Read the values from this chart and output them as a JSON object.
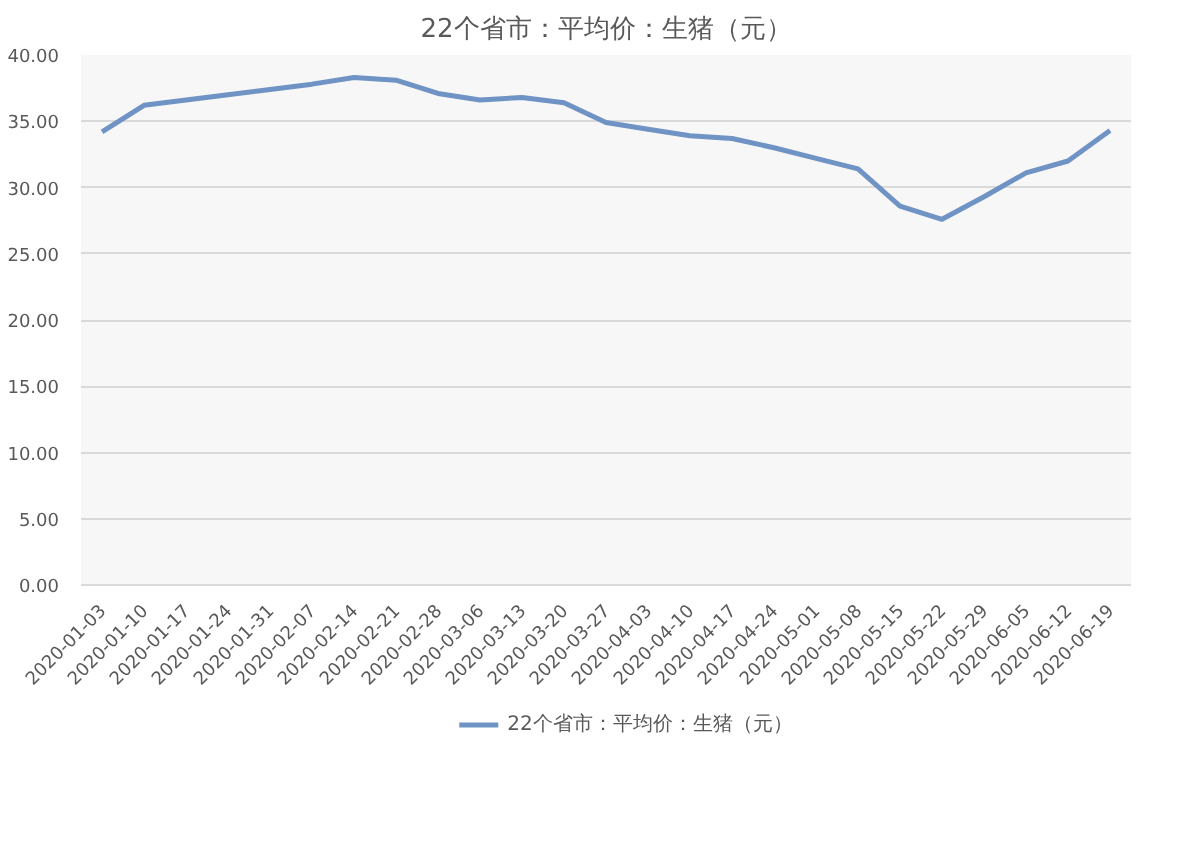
{
  "chart_data": {
    "type": "line",
    "title": "22个省市：平均价：生猪（元）",
    "categories": [
      "2020-01-03",
      "2020-01-10",
      "2020-01-17",
      "2020-01-24",
      "2020-01-31",
      "2020-02-07",
      "2020-02-14",
      "2020-02-21",
      "2020-02-28",
      "2020-03-06",
      "2020-03-13",
      "2020-03-20",
      "2020-03-27",
      "2020-04-03",
      "2020-04-10",
      "2020-04-17",
      "2020-04-24",
      "2020-05-01",
      "2020-05-08",
      "2020-05-15",
      "2020-05-22",
      "2020-05-29",
      "2020-06-05",
      "2020-06-12",
      "2020-06-19"
    ],
    "series": [
      {
        "name": "22个省市：平均价：生猪（元）",
        "color": "#6f93c4",
        "values": [
          34.2,
          36.2,
          36.6,
          37.0,
          37.4,
          37.8,
          38.3,
          38.1,
          37.1,
          36.6,
          36.8,
          36.4,
          34.9,
          34.4,
          33.9,
          33.7,
          33.0,
          32.2,
          31.4,
          28.6,
          27.6,
          29.3,
          31.1,
          32.0,
          34.3
        ]
      }
    ],
    "ylim": [
      0,
      40
    ],
    "yticks": [
      {
        "value": 0,
        "label": "0.00"
      },
      {
        "value": 5,
        "label": "5.00"
      },
      {
        "value": 10,
        "label": "10.00"
      },
      {
        "value": 15,
        "label": "15.00"
      },
      {
        "value": 20,
        "label": "20.00"
      },
      {
        "value": 25,
        "label": "25.00"
      },
      {
        "value": 30,
        "label": "30.00"
      },
      {
        "value": 35,
        "label": "35.00"
      },
      {
        "value": 40,
        "label": "40.00"
      }
    ],
    "grid": "y",
    "legend": "bottom",
    "marker": "none",
    "line_style": "solid"
  }
}
